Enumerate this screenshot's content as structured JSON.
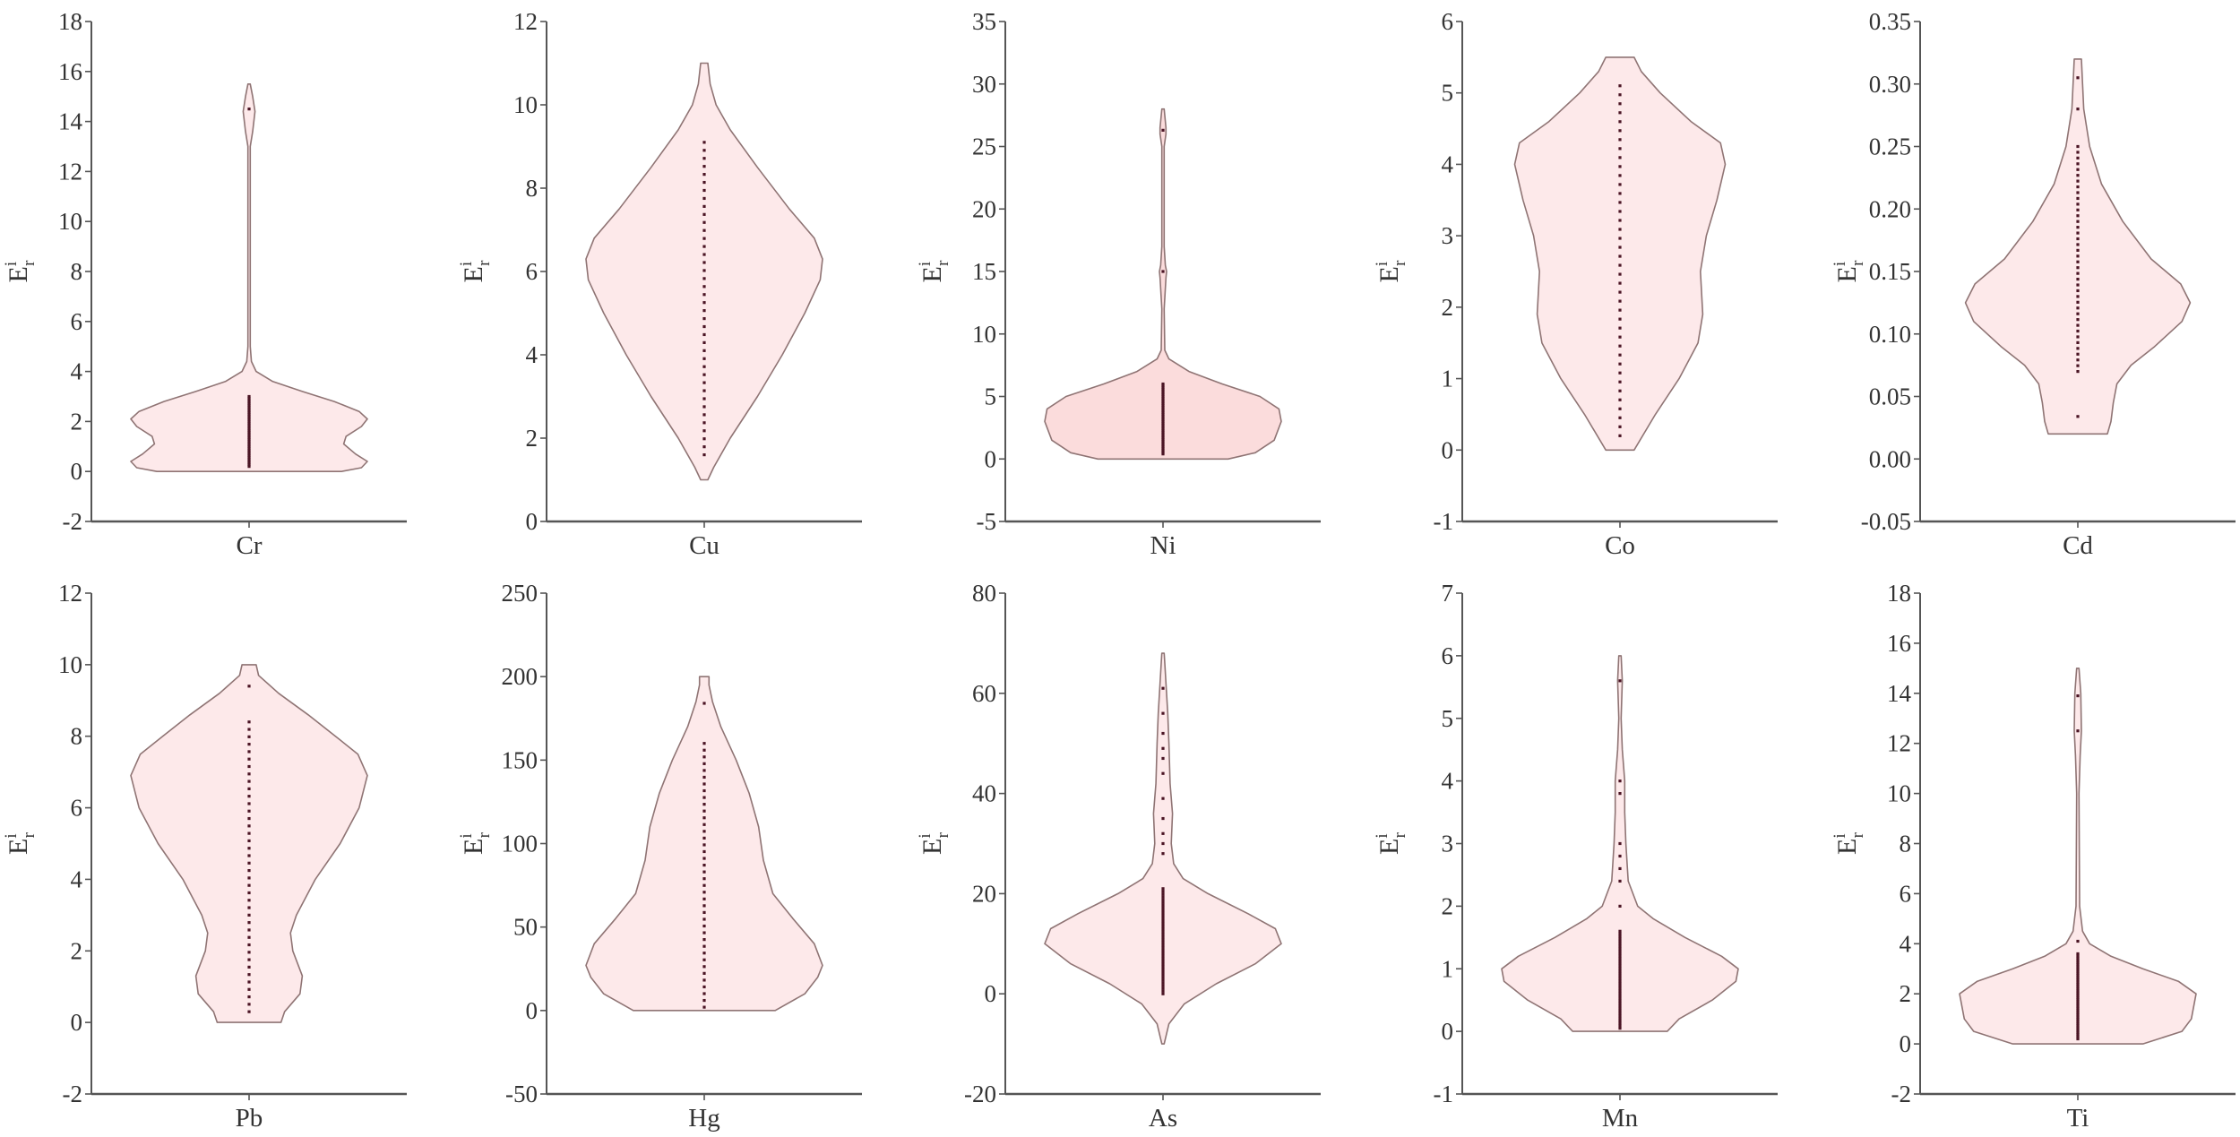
{
  "figure": {
    "ylabel": {
      "base": "E",
      "sup": "i",
      "sub": "r"
    },
    "colors": {
      "fill": "#fde9ea",
      "fill_ni": "#fbdcdc",
      "outline": "#8f7474",
      "points": "#4a1424",
      "axis": "#555555",
      "text": "#333333"
    }
  },
  "chart_data": [
    {
      "type": "violin",
      "category": "Cr",
      "xlabel": "Cr",
      "ylabel": "E_r^i",
      "ylim": [
        -2,
        18
      ],
      "yticks": [
        "-2",
        "0",
        "2",
        "4",
        "6",
        "8",
        "10",
        "12",
        "14",
        "16",
        "18"
      ],
      "profile": [
        [
          0,
          0.78
        ],
        [
          0.15,
          0.95
        ],
        [
          0.4,
          1.0
        ],
        [
          0.7,
          0.9
        ],
        [
          1.1,
          0.8
        ],
        [
          1.4,
          0.82
        ],
        [
          1.8,
          0.95
        ],
        [
          2.1,
          1.0
        ],
        [
          2.4,
          0.93
        ],
        [
          2.8,
          0.72
        ],
        [
          3.2,
          0.45
        ],
        [
          3.6,
          0.2
        ],
        [
          4.0,
          0.06
        ],
        [
          4.4,
          0.02
        ],
        [
          5,
          0.01
        ],
        [
          13,
          0.01
        ],
        [
          13.6,
          0.03
        ],
        [
          14.4,
          0.05
        ],
        [
          15,
          0.03
        ],
        [
          15.5,
          0.01
        ]
      ],
      "points_range": [
        0.2,
        3.0
      ],
      "points_extra": [
        14.5
      ],
      "grid": false
    },
    {
      "type": "violin",
      "category": "Cu",
      "xlabel": "Cu",
      "ylabel": "E_r^i",
      "ylim": [
        0,
        12
      ],
      "yticks": [
        "0",
        "2",
        "4",
        "6",
        "8",
        "10",
        "12"
      ],
      "profile": [
        [
          1.0,
          0.03
        ],
        [
          1.3,
          0.08
        ],
        [
          2,
          0.22
        ],
        [
          3,
          0.45
        ],
        [
          4,
          0.66
        ],
        [
          5,
          0.85
        ],
        [
          5.8,
          0.98
        ],
        [
          6.3,
          1.0
        ],
        [
          6.8,
          0.93
        ],
        [
          7.5,
          0.72
        ],
        [
          8.5,
          0.45
        ],
        [
          9.4,
          0.22
        ],
        [
          10,
          0.1
        ],
        [
          10.5,
          0.05
        ],
        [
          11,
          0.03
        ]
      ],
      "points_range": [
        1.6,
        9.1
      ],
      "points_extra": [],
      "grid": false
    },
    {
      "type": "violin",
      "category": "Ni",
      "xlabel": "Ni",
      "ylabel": "E_r^i",
      "ylim": [
        -5,
        35
      ],
      "yticks": [
        "-5",
        "0",
        "5",
        "10",
        "15",
        "20",
        "25",
        "30",
        "35"
      ],
      "profile": [
        [
          0,
          0.55
        ],
        [
          0.5,
          0.78
        ],
        [
          1.5,
          0.94
        ],
        [
          3,
          1.0
        ],
        [
          4,
          0.98
        ],
        [
          5,
          0.82
        ],
        [
          6,
          0.5
        ],
        [
          7,
          0.22
        ],
        [
          8,
          0.05
        ],
        [
          8.7,
          0.015
        ],
        [
          12,
          0.01
        ],
        [
          14.5,
          0.025
        ],
        [
          15,
          0.03
        ],
        [
          15.5,
          0.02
        ],
        [
          17,
          0.01
        ],
        [
          25,
          0.01
        ],
        [
          26,
          0.025
        ],
        [
          26.5,
          0.025
        ],
        [
          28,
          0.01
        ]
      ],
      "points_range": [
        0.4,
        6.0
      ],
      "points_extra": [
        15,
        26.3
      ],
      "grid": false
    },
    {
      "type": "violin",
      "category": "Co",
      "xlabel": "Co",
      "ylabel": "E_r^i",
      "ylim": [
        -1,
        6
      ],
      "yticks": [
        "-1",
        "0",
        "1",
        "2",
        "3",
        "4",
        "5",
        "6"
      ],
      "profile": [
        [
          0,
          0.12
        ],
        [
          0.5,
          0.3
        ],
        [
          1,
          0.5
        ],
        [
          1.5,
          0.66
        ],
        [
          1.9,
          0.7
        ],
        [
          2.5,
          0.68
        ],
        [
          3,
          0.73
        ],
        [
          3.5,
          0.82
        ],
        [
          4,
          0.89
        ],
        [
          4.3,
          0.85
        ],
        [
          4.6,
          0.6
        ],
        [
          5,
          0.34
        ],
        [
          5.3,
          0.18
        ],
        [
          5.5,
          0.12
        ]
      ],
      "points_range": [
        0.2,
        5.1
      ],
      "points_extra": [],
      "grid": false
    },
    {
      "type": "violin",
      "category": "Cd",
      "xlabel": "Cd",
      "ylabel": "E_r^i",
      "ylim": [
        -0.05,
        0.35
      ],
      "yticks": [
        "-0.05",
        "0.00",
        "0.05",
        "0.10",
        "0.15",
        "0.20",
        "0.25",
        "0.30",
        "0.35"
      ],
      "profile": [
        [
          0.02,
          0.25
        ],
        [
          0.03,
          0.28
        ],
        [
          0.045,
          0.3
        ],
        [
          0.06,
          0.33
        ],
        [
          0.075,
          0.45
        ],
        [
          0.09,
          0.65
        ],
        [
          0.11,
          0.88
        ],
        [
          0.125,
          0.95
        ],
        [
          0.14,
          0.87
        ],
        [
          0.16,
          0.62
        ],
        [
          0.19,
          0.38
        ],
        [
          0.22,
          0.2
        ],
        [
          0.25,
          0.1
        ],
        [
          0.28,
          0.05
        ],
        [
          0.3,
          0.04
        ],
        [
          0.32,
          0.03
        ]
      ],
      "points_range": [
        0.07,
        0.25
      ],
      "points_extra": [
        0.034,
        0.28,
        0.305
      ],
      "grid": false
    },
    {
      "type": "violin",
      "category": "Pb",
      "xlabel": "Pb",
      "ylabel": "E_r^i",
      "ylim": [
        -2,
        12
      ],
      "yticks": [
        "-2",
        "0",
        "2",
        "4",
        "6",
        "8",
        "10",
        "12"
      ],
      "profile": [
        [
          0,
          0.27
        ],
        [
          0.3,
          0.3
        ],
        [
          0.8,
          0.43
        ],
        [
          1.3,
          0.45
        ],
        [
          2,
          0.37
        ],
        [
          2.5,
          0.35
        ],
        [
          3,
          0.4
        ],
        [
          4,
          0.56
        ],
        [
          5,
          0.77
        ],
        [
          6,
          0.93
        ],
        [
          6.9,
          1.0
        ],
        [
          7.5,
          0.92
        ],
        [
          8,
          0.73
        ],
        [
          8.6,
          0.5
        ],
        [
          9.2,
          0.25
        ],
        [
          9.7,
          0.08
        ],
        [
          10,
          0.06
        ]
      ],
      "points_range": [
        0.3,
        8.4
      ],
      "points_extra": [
        9.4
      ],
      "grid": false
    },
    {
      "type": "violin",
      "category": "Hg",
      "xlabel": "Hg",
      "ylabel": "E_r^i",
      "ylim": [
        -50,
        250
      ],
      "yticks": [
        "-50",
        "0",
        "50",
        "100",
        "150",
        "200",
        "250"
      ],
      "profile": [
        [
          0,
          0.6
        ],
        [
          10,
          0.85
        ],
        [
          20,
          0.96
        ],
        [
          27,
          1.0
        ],
        [
          40,
          0.93
        ],
        [
          55,
          0.75
        ],
        [
          70,
          0.58
        ],
        [
          90,
          0.5
        ],
        [
          110,
          0.46
        ],
        [
          130,
          0.38
        ],
        [
          150,
          0.27
        ],
        [
          170,
          0.14
        ],
        [
          185,
          0.07
        ],
        [
          195,
          0.04
        ],
        [
          200,
          0.04
        ]
      ],
      "points_range": [
        2,
        160
      ],
      "points_extra": [
        184
      ],
      "grid": false
    },
    {
      "type": "violin",
      "category": "As",
      "xlabel": "As",
      "ylabel": "E_r^i",
      "ylim": [
        -20,
        80
      ],
      "yticks": [
        "-20",
        "0",
        "20",
        "40",
        "60",
        "80"
      ],
      "profile": [
        [
          -10,
          0.01
        ],
        [
          -6,
          0.05
        ],
        [
          -2,
          0.18
        ],
        [
          2,
          0.45
        ],
        [
          6,
          0.78
        ],
        [
          10,
          1.0
        ],
        [
          13,
          0.95
        ],
        [
          16,
          0.72
        ],
        [
          20,
          0.38
        ],
        [
          23,
          0.17
        ],
        [
          26,
          0.09
        ],
        [
          30,
          0.07
        ],
        [
          36,
          0.08
        ],
        [
          42,
          0.06
        ],
        [
          50,
          0.05
        ],
        [
          56,
          0.04
        ],
        [
          62,
          0.025
        ],
        [
          66,
          0.015
        ],
        [
          68,
          0.01
        ]
      ],
      "points_range": [
        0,
        21
      ],
      "points_extra": [
        28,
        30,
        32,
        35,
        39,
        44,
        47,
        49,
        52,
        56,
        61
      ],
      "grid": false
    },
    {
      "type": "violin",
      "category": "Mn",
      "xlabel": "Mn",
      "ylabel": "E_r^i",
      "ylim": [
        -1,
        7
      ],
      "yticks": [
        "-1",
        "0",
        "1",
        "2",
        "3",
        "4",
        "5",
        "6",
        "7"
      ],
      "profile": [
        [
          0,
          0.4
        ],
        [
          0.2,
          0.5
        ],
        [
          0.5,
          0.78
        ],
        [
          0.8,
          0.98
        ],
        [
          1,
          1.0
        ],
        [
          1.2,
          0.86
        ],
        [
          1.5,
          0.55
        ],
        [
          1.8,
          0.28
        ],
        [
          2,
          0.15
        ],
        [
          2.4,
          0.07
        ],
        [
          3,
          0.05
        ],
        [
          3.5,
          0.04
        ],
        [
          4,
          0.04
        ],
        [
          4.5,
          0.02
        ],
        [
          5,
          0.01
        ],
        [
          5.6,
          0.02
        ],
        [
          6,
          0.01
        ]
      ],
      "points_range": [
        0.05,
        1.6
      ],
      "points_extra": [
        2.0,
        2.4,
        2.6,
        2.8,
        3.0,
        3.8,
        4.0,
        5.6
      ],
      "grid": false
    },
    {
      "type": "violin",
      "category": "Ti",
      "xlabel": "Ti",
      "ylabel": "E_r^i",
      "ylim": [
        -2,
        18
      ],
      "yticks": [
        "-2",
        "0",
        "2",
        "4",
        "6",
        "8",
        "10",
        "12",
        "14",
        "16",
        "18"
      ],
      "profile": [
        [
          0,
          0.55
        ],
        [
          0.5,
          0.88
        ],
        [
          1,
          0.96
        ],
        [
          2,
          1.0
        ],
        [
          2.5,
          0.85
        ],
        [
          3,
          0.55
        ],
        [
          3.5,
          0.28
        ],
        [
          4,
          0.1
        ],
        [
          4.5,
          0.04
        ],
        [
          5.5,
          0.015
        ],
        [
          10,
          0.01
        ],
        [
          11.5,
          0.02
        ],
        [
          12.5,
          0.03
        ],
        [
          14,
          0.025
        ],
        [
          15,
          0.01
        ]
      ],
      "points_range": [
        0.2,
        3.6
      ],
      "points_extra": [
        4.1,
        12.5,
        13.9
      ],
      "grid": false
    }
  ]
}
